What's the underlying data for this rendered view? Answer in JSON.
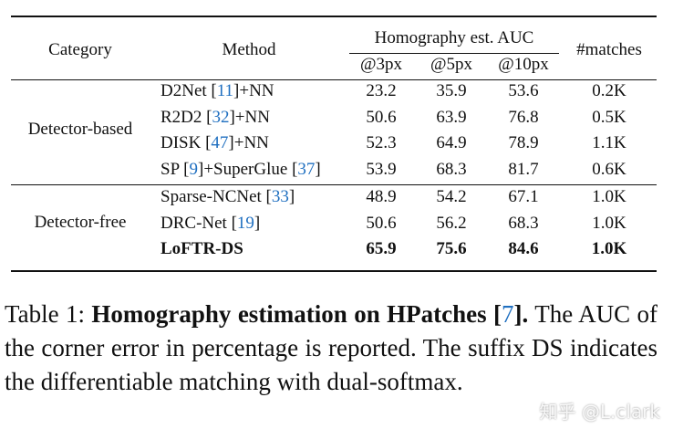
{
  "table": {
    "header": {
      "category": "Category",
      "method": "Method",
      "group": "Homography est. AUC",
      "subcolumns": [
        "@3px",
        "@5px",
        "@10px"
      ],
      "matches": "#matches"
    },
    "groups": [
      {
        "category": "Detector-based",
        "rows": [
          {
            "method": [
              "D2Net [",
              "11",
              "]+NN"
            ],
            "cells": [
              "23.2",
              "35.9",
              "53.6",
              "0.2K"
            ],
            "bold": false
          },
          {
            "method": [
              "R2D2 [",
              "32",
              "]+NN"
            ],
            "cells": [
              "50.6",
              "63.9",
              "76.8",
              "0.5K"
            ],
            "bold": false
          },
          {
            "method": [
              "DISK [",
              "47",
              "]+NN"
            ],
            "cells": [
              "52.3",
              "64.9",
              "78.9",
              "1.1K"
            ],
            "bold": false
          },
          {
            "method": [
              "SP [",
              "9",
              "]+SuperGlue [",
              "37",
              "]"
            ],
            "cells": [
              "53.9",
              "68.3",
              "81.7",
              "0.6K"
            ],
            "bold": false
          }
        ]
      },
      {
        "category": "Detector-free",
        "rows": [
          {
            "method": [
              "Sparse-NCNet [",
              "33",
              "]"
            ],
            "cells": [
              "48.9",
              "54.2",
              "67.1",
              "1.0K"
            ],
            "bold": false
          },
          {
            "method": [
              "DRC-Net [",
              "19",
              "]"
            ],
            "cells": [
              "50.6",
              "56.2",
              "68.3",
              "1.0K"
            ],
            "bold": false
          },
          {
            "method": [
              "LoFTR-DS"
            ],
            "cells": [
              "65.9",
              "75.6",
              "84.6",
              "1.0K"
            ],
            "bold": true
          }
        ]
      }
    ]
  },
  "caption": {
    "segments": [
      {
        "text": "Table 1: ",
        "style": "normal"
      },
      {
        "text": "Homography estimation on HPatches [",
        "style": "bold"
      },
      {
        "text": "7",
        "style": "cite"
      },
      {
        "text": "].",
        "style": "bold"
      },
      {
        "text": " The AUC of the corner error in percentage is reported. The suffix DS indicates the differentiable matching with dual-softmax.",
        "style": "normal"
      }
    ]
  },
  "watermark": "知乎 @L.clark"
}
